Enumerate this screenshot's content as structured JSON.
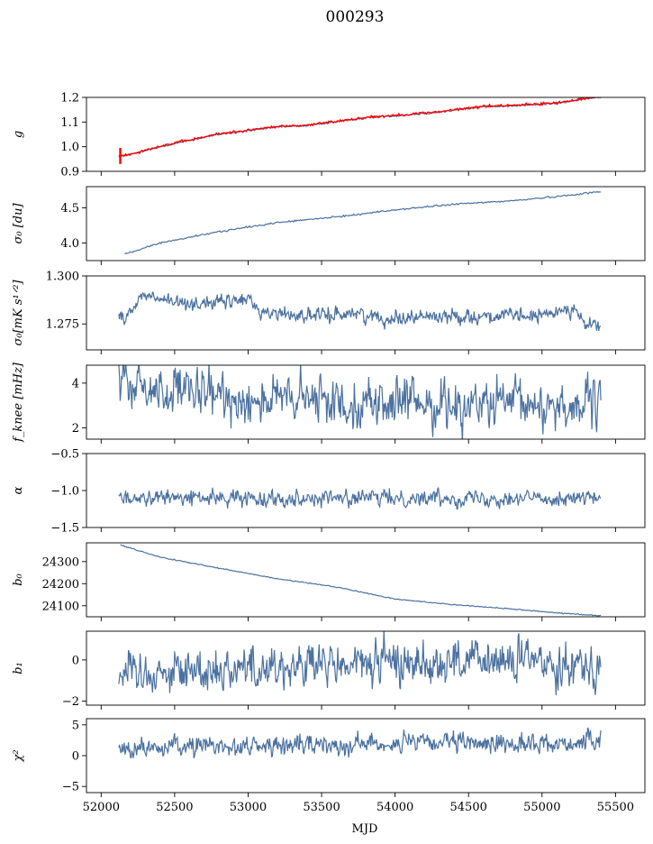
{
  "chart_data": {
    "type": "line",
    "title": "000293",
    "xlabel": "MJD",
    "xlim": [
      51900,
      55700
    ],
    "xticks": [
      52000,
      52500,
      53000,
      53500,
      54000,
      54500,
      55000,
      55500
    ],
    "xtick_labels": [
      "52000",
      "52500",
      "53000",
      "53500",
      "54000",
      "54500",
      "55000",
      "55500"
    ],
    "x_range": [
      52120,
      55400
    ],
    "line_color": "#4c72a0",
    "highlight_color": "#ff0000",
    "grid": false,
    "panels": [
      {
        "id": "g",
        "ylabel": "g",
        "ylim": [
          0.9,
          1.2
        ],
        "yticks": [
          0.9,
          1.0,
          1.1,
          1.2
        ],
        "ytick_labels": [
          "0.9",
          "1.0",
          "1.1",
          "1.2"
        ],
        "series": [
          {
            "kind": "trend",
            "x": [
              52120,
              52200,
              52400,
              52800,
              53200,
              53400,
              53800,
              54100,
              54300,
              54600,
              54900,
              55100,
              55300,
              55400
            ],
            "values": [
              0.96,
              0.968,
              1.0,
              1.05,
              1.08,
              1.085,
              1.117,
              1.13,
              1.14,
              1.162,
              1.168,
              1.175,
              1.195,
              1.2
            ],
            "noise": 0.002
          },
          {
            "kind": "trend_red",
            "x": [
              52120,
              52200,
              52400,
              52800,
              53200,
              53400,
              53800,
              54100,
              54300,
              54600,
              54900,
              55100,
              55300,
              55400
            ],
            "values": [
              0.963,
              0.97,
              1.002,
              1.052,
              1.082,
              1.087,
              1.119,
              1.132,
              1.142,
              1.164,
              1.171,
              1.178,
              1.197,
              1.201
            ],
            "noise": 0.0025,
            "spike": {
              "x": 52130,
              "min": 0.93,
              "max": 0.995
            }
          }
        ]
      },
      {
        "id": "sigma0-du",
        "ylabel": "σ₀ [du]",
        "ylim": [
          3.75,
          4.8
        ],
        "yticks": [
          4.0,
          4.5
        ],
        "ytick_labels": [
          "4.0",
          "4.5"
        ],
        "series": [
          {
            "kind": "trend",
            "x": [
              52160,
              52400,
              52800,
              53200,
              53600,
              54000,
              54400,
              54800,
              55100,
              55400
            ],
            "values": [
              3.84,
              4.0,
              4.16,
              4.29,
              4.37,
              4.47,
              4.55,
              4.6,
              4.66,
              4.73
            ],
            "noise": 0.006
          }
        ]
      },
      {
        "id": "sigma0-mks",
        "ylabel": "σ₀[mK s¹ᐟ²]",
        "ylim": [
          1.2615,
          1.3
        ],
        "yticks": [
          1.275,
          1.3
        ],
        "ytick_labels": [
          "1.275",
          "1.300"
        ],
        "series": [
          {
            "kind": "noise",
            "x": [
              52120,
              52200,
              52280,
              52500,
              52800,
              53000,
              53100,
              53500,
              53700,
              53900,
              54200,
              54500,
              55000,
              55200,
              55300,
              55400
            ],
            "values": [
              1.278,
              1.281,
              1.29,
              1.286,
              1.286,
              1.288,
              1.281,
              1.279,
              1.281,
              1.278,
              1.279,
              1.279,
              1.279,
              1.284,
              1.274,
              1.275
            ],
            "noise": 0.0018
          }
        ]
      },
      {
        "id": "fknee",
        "ylabel": "f_knee [mHz]",
        "ylim": [
          1.5,
          4.8
        ],
        "yticks": [
          2,
          4
        ],
        "ytick_labels": [
          "2",
          "4"
        ],
        "series": [
          {
            "kind": "noise",
            "x": [
              52120,
              52600,
              53000,
              53500,
              54000,
              54500,
              55000,
              55400
            ],
            "values": [
              3.9,
              3.5,
              3.3,
              3.2,
              3.1,
              3.05,
              3.0,
              3.0
            ],
            "noise": 0.5
          }
        ]
      },
      {
        "id": "alpha",
        "ylabel": "α",
        "ylim": [
          -1.5,
          -0.5
        ],
        "yticks": [
          -1.5,
          -1.0,
          -0.5
        ],
        "ytick_labels": [
          "−1.5",
          "−1.0",
          "−0.5"
        ],
        "series": [
          {
            "kind": "noise",
            "x": [
              52120,
              55400
            ],
            "values": [
              -1.1,
              -1.1
            ],
            "noise": 0.05
          }
        ]
      },
      {
        "id": "b0",
        "ylabel": "b₀",
        "ylim": [
          24050,
          24385
        ],
        "yticks": [
          24100,
          24200,
          24300
        ],
        "ytick_labels": [
          "24100",
          "24200",
          "24300"
        ],
        "series": [
          {
            "kind": "trend",
            "x": [
              52130,
              52400,
              52800,
              53200,
              53600,
              54000,
              54400,
              54800,
              55100,
              55400
            ],
            "values": [
              24375,
              24320,
              24270,
              24222,
              24185,
              24130,
              24105,
              24085,
              24068,
              24055
            ],
            "noise": 1.2
          }
        ]
      },
      {
        "id": "b1",
        "ylabel": "b₁",
        "ylim": [
          -2.2,
          1.4
        ],
        "yticks": [
          -2,
          0
        ],
        "ytick_labels": [
          "−2",
          "0"
        ],
        "series": [
          {
            "kind": "noise",
            "x": [
              52120,
              52600,
              53000,
              53500,
              54000,
              54500,
              55000,
              55400
            ],
            "values": [
              -0.6,
              -0.5,
              -0.35,
              -0.3,
              -0.1,
              -0.1,
              -0.05,
              -0.2
            ],
            "noise": 0.5
          }
        ]
      },
      {
        "id": "chi2",
        "ylabel": "χ²",
        "ylim": [
          -6,
          6
        ],
        "yticks": [
          -5,
          0,
          5
        ],
        "ytick_labels": [
          "−5",
          "0",
          "5"
        ],
        "series": [
          {
            "kind": "noise",
            "x": [
              52120,
              52600,
              53000,
              53500,
              54000,
              54500,
              55000,
              55400
            ],
            "values": [
              0.8,
              1.6,
              1.5,
              1.8,
              2.0,
              2.0,
              1.9,
              2.3
            ],
            "noise": 0.75
          }
        ]
      }
    ]
  }
}
